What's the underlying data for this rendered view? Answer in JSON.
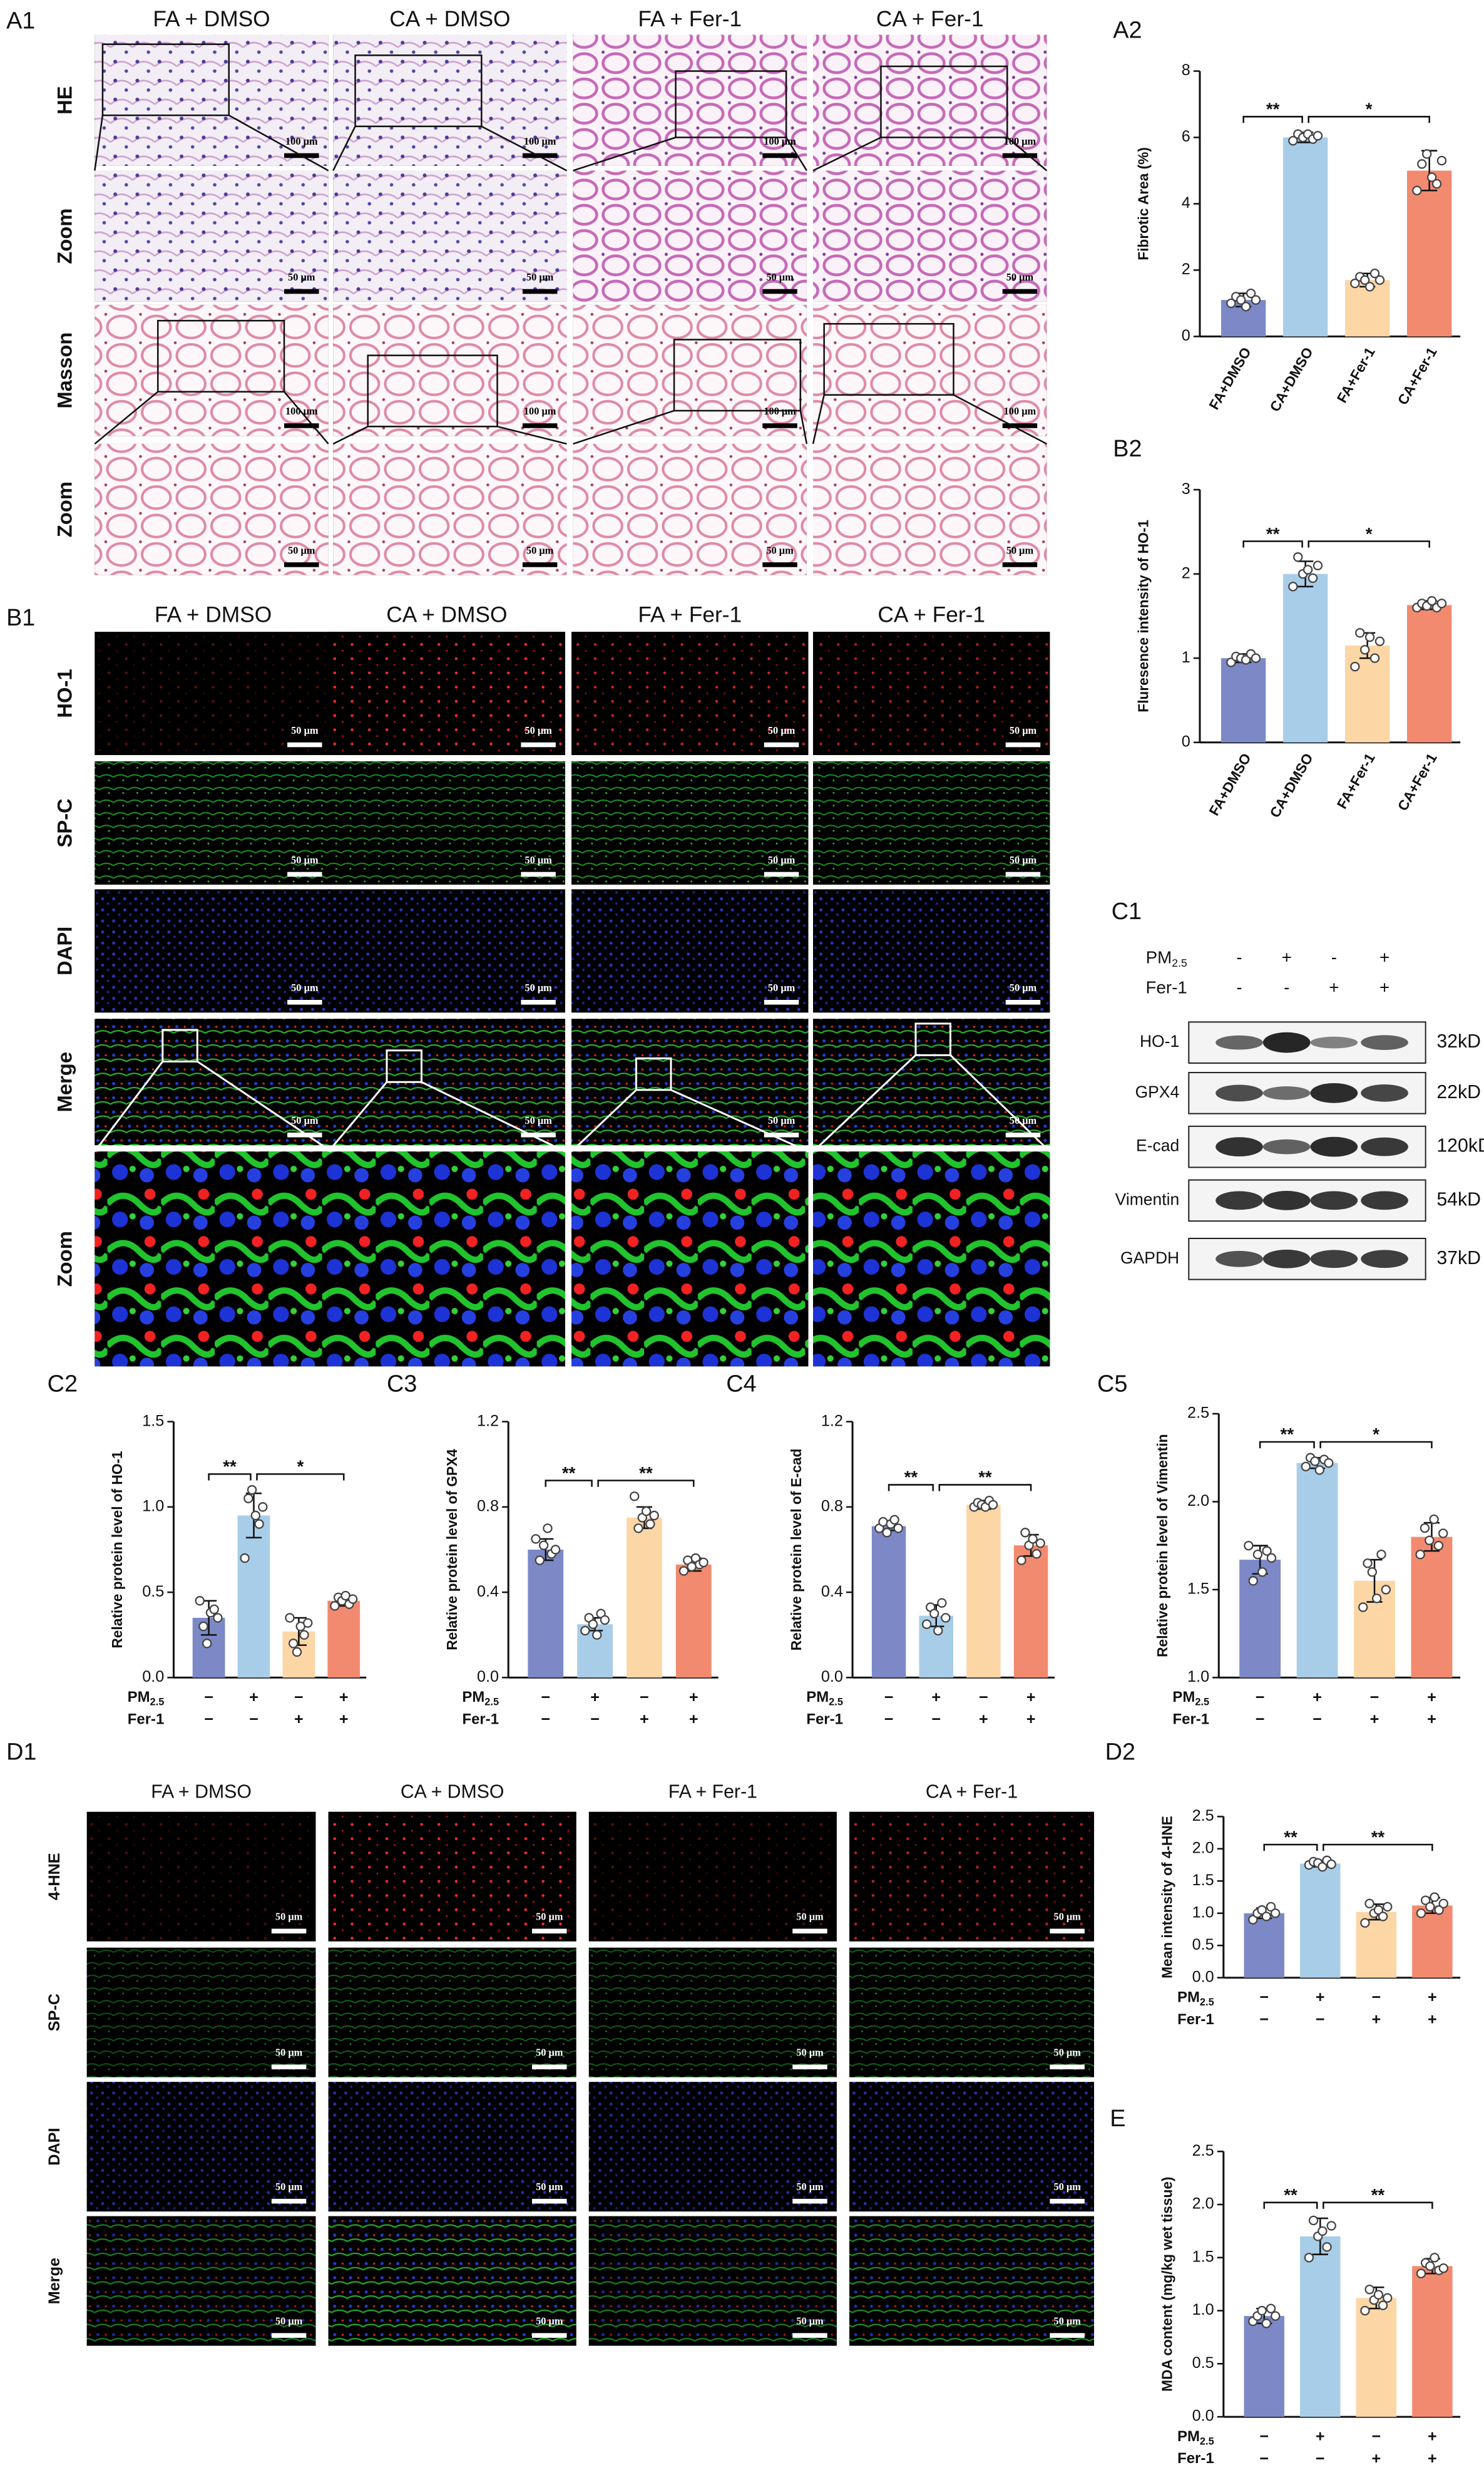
{
  "panels": {
    "A1": {
      "label": "A1",
      "columns": [
        "FA + DMSO",
        "CA + DMSO",
        "FA + Fer-1",
        "CA + Fer-1"
      ],
      "rows": [
        {
          "label": "HE",
          "scale_bar": "100 μm"
        },
        {
          "label": "Zoom",
          "scale_bar": "50 μm"
        },
        {
          "label": "Masson",
          "scale_bar": "100 μm"
        },
        {
          "label": "Zoom",
          "scale_bar": "50 μm"
        }
      ]
    },
    "B1": {
      "label": "B1",
      "columns": [
        "FA + DMSO",
        "CA + DMSO",
        "FA + Fer-1",
        "CA + Fer-1"
      ],
      "rows": [
        {
          "label": "HO-1",
          "scale_bar": "50 μm"
        },
        {
          "label": "SP-C",
          "scale_bar": "50 μm"
        },
        {
          "label": "DAPI",
          "scale_bar": "50 μm"
        },
        {
          "label": "Merge",
          "scale_bar": "50 μm"
        },
        {
          "label": "Zoom"
        }
      ]
    },
    "C1": {
      "label": "C1",
      "factors": [
        {
          "name": "PM",
          "subscript": "2.5",
          "signs": [
            "-",
            "+",
            "-",
            "+"
          ]
        },
        {
          "name": "Fer-1",
          "signs": [
            "-",
            "-",
            "+",
            "+"
          ]
        }
      ],
      "bands": [
        {
          "name": "HO-1",
          "size": "32kD"
        },
        {
          "name": "GPX4",
          "size": "22kD"
        },
        {
          "name": "E-cad",
          "size": "120kD"
        },
        {
          "name": "Vimentin",
          "size": "54kD"
        },
        {
          "name": "GAPDH",
          "size": "37kD"
        }
      ]
    },
    "D1": {
      "label": "D1",
      "columns": [
        "FA + DMSO",
        "CA + DMSO",
        "FA + Fer-1",
        "CA + Fer-1"
      ],
      "rows": [
        {
          "label": "4-HNE",
          "scale_bar": "50 μm"
        },
        {
          "label": "SP-C",
          "scale_bar": "50 μm"
        },
        {
          "label": "DAPI",
          "scale_bar": "50 μm"
        },
        {
          "label": "Merge",
          "scale_bar": "50 μm"
        }
      ]
    }
  },
  "chart_data": [
    {
      "type": "bar",
      "panel_label": "A2",
      "y_label": "Fibrotic Area (%)",
      "categories": [
        "FA+DMSO",
        "CA+DMSO",
        "FA+Fer-1",
        "CA+Fer-1"
      ],
      "values": [
        1.1,
        6.0,
        1.7,
        5.0
      ],
      "errors": [
        0.2,
        0.15,
        0.2,
        0.6
      ],
      "points": [
        [
          1.0,
          1.2,
          1.1,
          0.9,
          1.3,
          1.1
        ],
        [
          5.9,
          6.1,
          6.0,
          6.1,
          5.95,
          6.05
        ],
        [
          1.6,
          1.8,
          1.7,
          1.5,
          1.9,
          1.7
        ],
        [
          4.4,
          5.2,
          5.5,
          4.8,
          4.6,
          5.3
        ]
      ],
      "colors": [
        "#7c89c6",
        "#a8cde8",
        "#fdd6a6",
        "#f28a6f"
      ],
      "ylim": [
        0,
        8
      ],
      "yticks": [
        0,
        2,
        4,
        6,
        8
      ],
      "comparisons": [
        {
          "groups": [
            0,
            1
          ],
          "label": "**"
        },
        {
          "groups": [
            1,
            3
          ],
          "label": "*"
        }
      ]
    },
    {
      "type": "bar",
      "panel_label": "B2",
      "y_label": "Fluresence intensity of HO-1",
      "categories": [
        "FA+DMSO",
        "CA+DMSO",
        "FA+Fer-1",
        "CA+Fer-1"
      ],
      "values": [
        1.0,
        2.0,
        1.15,
        1.63
      ],
      "errors": [
        0.05,
        0.15,
        0.15,
        0.05
      ],
      "points": [
        [
          0.95,
          1.02,
          1.0,
          0.98,
          1.05,
          1.0
        ],
        [
          1.85,
          2.2,
          2.0,
          2.05,
          1.95,
          2.1
        ],
        [
          0.9,
          1.3,
          1.1,
          1.25,
          1.0,
          1.2
        ],
        [
          1.6,
          1.65,
          1.62,
          1.68,
          1.6,
          1.65
        ]
      ],
      "colors": [
        "#7c89c6",
        "#a8cde8",
        "#fdd6a6",
        "#f28a6f"
      ],
      "ylim": [
        0,
        3
      ],
      "yticks": [
        0,
        1,
        2,
        3
      ],
      "comparisons": [
        {
          "groups": [
            0,
            1
          ],
          "label": "**"
        },
        {
          "groups": [
            1,
            3
          ],
          "label": "*"
        }
      ]
    },
    {
      "type": "bar",
      "panel_label": "C2",
      "y_label": "Relative protein level of HO-1",
      "factors": [
        {
          "name": "PM",
          "subscript": "2.5",
          "signs": [
            "−",
            "+",
            "−",
            "+"
          ]
        },
        {
          "name": "Fer-1",
          "signs": [
            "−",
            "−",
            "+",
            "+"
          ]
        }
      ],
      "values": [
        0.35,
        0.95,
        0.27,
        0.45
      ],
      "errors": [
        0.1,
        0.13,
        0.08,
        0.03
      ],
      "points": [
        [
          0.45,
          0.3,
          0.2,
          0.38,
          0.4,
          0.35
        ],
        [
          0.7,
          1.05,
          1.1,
          0.95,
          0.9,
          1.0
        ],
        [
          0.35,
          0.2,
          0.15,
          0.3,
          0.25,
          0.32
        ],
        [
          0.42,
          0.47,
          0.45,
          0.48,
          0.43,
          0.46
        ]
      ],
      "colors": [
        "#7c89c6",
        "#a8cde8",
        "#fdd6a6",
        "#f28a6f"
      ],
      "ylim": [
        0,
        1.5
      ],
      "yticks": [
        {
          "value": 0,
          "label": "0.0"
        },
        0.5,
        {
          "value": 1,
          "label": "1.0"
        },
        1.5
      ],
      "comparisons": [
        {
          "groups": [
            0,
            1
          ],
          "label": "**"
        },
        {
          "groups": [
            1,
            3
          ],
          "label": "*"
        }
      ]
    },
    {
      "type": "bar",
      "panel_label": "C3",
      "y_label": "Relative protein level of GPX4",
      "factors": [
        {
          "name": "PM",
          "subscript": "2.5",
          "signs": [
            "−",
            "+",
            "−",
            "+"
          ]
        },
        {
          "name": "Fer-1",
          "signs": [
            "−",
            "−",
            "+",
            "+"
          ]
        }
      ],
      "values": [
        0.6,
        0.25,
        0.75,
        0.53
      ],
      "errors": [
        0.05,
        0.03,
        0.05,
        0.03
      ],
      "points": [
        [
          0.65,
          0.55,
          0.62,
          0.7,
          0.58,
          0.6
        ],
        [
          0.22,
          0.28,
          0.25,
          0.2,
          0.3,
          0.27
        ],
        [
          0.85,
          0.7,
          0.75,
          0.78,
          0.72,
          0.76
        ],
        [
          0.5,
          0.55,
          0.52,
          0.56,
          0.53,
          0.54
        ]
      ],
      "colors": [
        "#7c89c6",
        "#a8cde8",
        "#fdd6a6",
        "#f28a6f"
      ],
      "ylim": [
        0,
        1.2
      ],
      "yticks": [
        {
          "value": 0,
          "label": "0.0"
        },
        0.4,
        0.8,
        1.2
      ],
      "comparisons": [
        {
          "groups": [
            0,
            1
          ],
          "label": "**"
        },
        {
          "groups": [
            1,
            3
          ],
          "label": "**"
        }
      ]
    },
    {
      "type": "bar",
      "panel_label": "C4",
      "y_label": "Relative protein level of E-cad",
      "factors": [
        {
          "name": "PM",
          "subscript": "2.5",
          "signs": [
            "−",
            "+",
            "−",
            "+"
          ]
        },
        {
          "name": "Fer-1",
          "signs": [
            "−",
            "−",
            "+",
            "+"
          ]
        }
      ],
      "values": [
        0.71,
        0.29,
        0.81,
        0.62
      ],
      "errors": [
        0.02,
        0.05,
        0.02,
        0.05
      ],
      "points": [
        [
          0.7,
          0.73,
          0.68,
          0.72,
          0.74,
          0.7
        ],
        [
          0.25,
          0.33,
          0.3,
          0.22,
          0.35,
          0.28
        ],
        [
          0.8,
          0.82,
          0.81,
          0.8,
          0.83,
          0.81
        ],
        [
          0.55,
          0.68,
          0.62,
          0.65,
          0.58,
          0.63
        ]
      ],
      "colors": [
        "#7c89c6",
        "#a8cde8",
        "#fdd6a6",
        "#f28a6f"
      ],
      "ylim": [
        0,
        1.2
      ],
      "yticks": [
        {
          "value": 0,
          "label": "0.0"
        },
        0.4,
        0.8,
        1.2
      ],
      "comparisons": [
        {
          "groups": [
            0,
            1
          ],
          "label": "**"
        },
        {
          "groups": [
            1,
            3
          ],
          "label": "**"
        }
      ]
    },
    {
      "type": "bar",
      "panel_label": "C5",
      "y_label": "Relative protein level of Vimentin",
      "factors": [
        {
          "name": "PM",
          "subscript": "2.5",
          "signs": [
            "−",
            "+",
            "−",
            "+"
          ]
        },
        {
          "name": "Fer-1",
          "signs": [
            "−",
            "−",
            "+",
            "+"
          ]
        }
      ],
      "values": [
        1.67,
        2.22,
        1.55,
        1.8
      ],
      "errors": [
        0.08,
        0.03,
        0.12,
        0.08
      ],
      "points": [
        [
          1.75,
          1.55,
          1.7,
          1.6,
          1.72,
          1.68
        ],
        [
          2.2,
          2.25,
          2.23,
          2.18,
          2.24,
          2.22
        ],
        [
          1.4,
          1.65,
          1.6,
          1.45,
          1.7,
          1.5
        ],
        [
          1.7,
          1.85,
          1.78,
          1.9,
          1.75,
          1.82
        ]
      ],
      "colors": [
        "#7c89c6",
        "#a8cde8",
        "#fdd6a6",
        "#f28a6f"
      ],
      "ylim": [
        1,
        2.5
      ],
      "yticks": [
        {
          "value": 1,
          "label": "1.0"
        },
        1.5,
        {
          "value": 2,
          "label": "2.0"
        },
        2.5
      ],
      "comparisons": [
        {
          "groups": [
            0,
            1
          ],
          "label": "**"
        },
        {
          "groups": [
            1,
            3
          ],
          "label": "*"
        }
      ]
    },
    {
      "type": "bar",
      "panel_label": "D2",
      "y_label": "Mean intensity of 4-HNE",
      "factors": [
        {
          "name": "PM",
          "subscript": "2.5",
          "signs": [
            "−",
            "+",
            "−",
            "+"
          ]
        },
        {
          "name": "Fer-1",
          "signs": [
            "−",
            "−",
            "+",
            "+"
          ]
        }
      ],
      "values": [
        1.0,
        1.77,
        1.02,
        1.12
      ],
      "errors": [
        0.08,
        0.05,
        0.12,
        0.12
      ],
      "points": [
        [
          0.9,
          1.0,
          1.05,
          0.95,
          1.1,
          1.0
        ],
        [
          1.75,
          1.8,
          1.78,
          1.72,
          1.82,
          1.76
        ],
        [
          0.85,
          1.15,
          1.0,
          1.05,
          0.95,
          1.1
        ],
        [
          1.0,
          1.2,
          1.1,
          1.25,
          1.05,
          1.15
        ]
      ],
      "colors": [
        "#7c89c6",
        "#a8cde8",
        "#fdd6a6",
        "#f28a6f"
      ],
      "ylim": [
        0,
        2.5
      ],
      "yticks": [
        {
          "value": 0,
          "label": "0.0"
        },
        0.5,
        {
          "value": 1,
          "label": "1.0"
        },
        1.5,
        {
          "value": 2,
          "label": "2.0"
        },
        2.5
      ],
      "comparisons": [
        {
          "groups": [
            0,
            1
          ],
          "label": "**"
        },
        {
          "groups": [
            1,
            3
          ],
          "label": "**"
        }
      ]
    },
    {
      "type": "bar",
      "panel_label": "E",
      "y_label": "MDA content (mg/kg wet tissue)",
      "factors": [
        {
          "name": "PM",
          "subscript": "2.5",
          "signs": [
            "−",
            "+",
            "−",
            "+"
          ]
        },
        {
          "name": "Fer-1",
          "signs": [
            "−",
            "−",
            "+",
            "+"
          ]
        }
      ],
      "values": [
        0.95,
        1.7,
        1.12,
        1.42
      ],
      "errors": [
        0.07,
        0.17,
        0.1,
        0.07
      ],
      "points": [
        [
          0.9,
          0.95,
          1.0,
          0.88,
          1.02,
          0.95
        ],
        [
          1.5,
          1.85,
          1.7,
          1.75,
          1.6,
          1.8
        ],
        [
          1.0,
          1.2,
          1.1,
          1.15,
          1.05,
          1.12
        ],
        [
          1.35,
          1.45,
          1.42,
          1.5,
          1.38,
          1.4
        ]
      ],
      "colors": [
        "#7c89c6",
        "#a8cde8",
        "#fdd6a6",
        "#f28a6f"
      ],
      "ylim": [
        0,
        2.5
      ],
      "yticks": [
        {
          "value": 0,
          "label": "0.0"
        },
        0.5,
        {
          "value": 1,
          "label": "1.0"
        },
        1.5,
        {
          "value": 2,
          "label": "2.0"
        },
        2.5
      ],
      "comparisons": [
        {
          "groups": [
            0,
            1
          ],
          "label": "**"
        },
        {
          "groups": [
            1,
            3
          ],
          "label": "**"
        }
      ]
    }
  ]
}
